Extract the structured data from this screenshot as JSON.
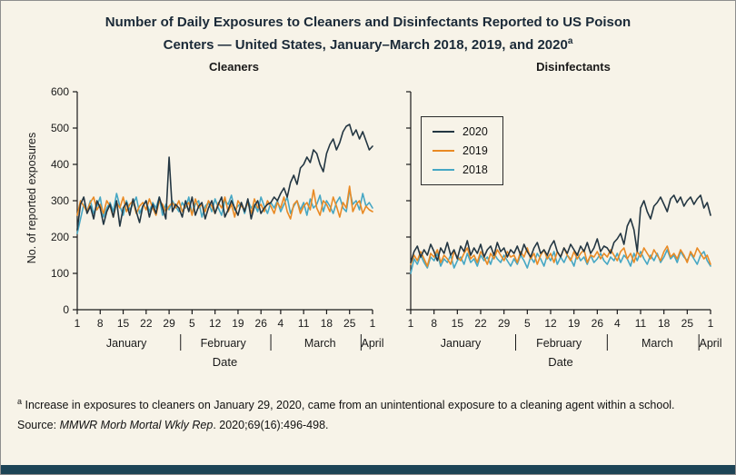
{
  "header": {
    "title_line1": "Number of Daily Exposures to Cleaners and Disinfectants Reported to US Poison",
    "title_line2": "Centers — United States, January–March 2018, 2019, and 2020",
    "title_sup": "a"
  },
  "legend": {
    "items": [
      {
        "label": "2020",
        "color": "#233642"
      },
      {
        "label": "2019",
        "color": "#e98a24"
      },
      {
        "label": "2018",
        "color": "#46a7c4"
      }
    ]
  },
  "footnote": {
    "marker": "a",
    "text": "Increase in exposures to cleaners on January 29, 2020, came from an unintentional exposure to a cleaning agent within a school."
  },
  "source": {
    "prefix": "Source: ",
    "journal": "MMWR Morb Mortal Wkly Rep",
    "rest": ". 2020;69(16):496-498."
  },
  "colors": {
    "background": "#f7f3e8",
    "accent_bar": "#1d4456",
    "axis": "#1a1a1a"
  },
  "chart_data": [
    {
      "type": "line",
      "title": "Cleaners",
      "xlabel": "Date",
      "ylabel": "No. of reported exposures",
      "x_unit": "day of year (Jan 1 = 1, Apr 1 = 91)",
      "xlim": [
        1,
        91
      ],
      "ylim": [
        0,
        600
      ],
      "y_ticks": [
        0,
        100,
        200,
        300,
        400,
        500,
        600
      ],
      "x_ticks": {
        "days": [
          1,
          8,
          15,
          22,
          29,
          36,
          43,
          50,
          57,
          63,
          70,
          77,
          84,
          91
        ],
        "labels": [
          "1",
          "8",
          "15",
          "22",
          "29",
          "5",
          "12",
          "19",
          "26",
          "4",
          "11",
          "18",
          "25",
          "1"
        ]
      },
      "months": [
        {
          "label": "January",
          "center_day": 16
        },
        {
          "label": "February",
          "center_day": 45.5
        },
        {
          "label": "March",
          "center_day": 75
        },
        {
          "label": "April",
          "center_day": 91
        }
      ],
      "month_separators": [
        32.5,
        60,
        87.5
      ],
      "series": [
        {
          "name": "2020",
          "color": "#233642",
          "values": [
            220,
            290,
            310,
            265,
            285,
            250,
            300,
            280,
            235,
            270,
            290,
            255,
            300,
            230,
            280,
            295,
            260,
            305,
            270,
            240,
            285,
            300,
            255,
            290,
            265,
            310,
            280,
            250,
            420,
            270,
            290,
            280,
            255,
            300,
            270,
            310,
            260,
            285,
            295,
            250,
            280,
            300,
            265,
            290,
            310,
            255,
            275,
            300,
            280,
            260,
            295,
            270,
            305,
            250,
            285,
            300,
            265,
            280,
            290,
            295,
            310,
            300,
            320,
            335,
            310,
            350,
            370,
            345,
            390,
            400,
            420,
            405,
            440,
            430,
            400,
            380,
            430,
            455,
            470,
            440,
            460,
            490,
            505,
            510,
            480,
            495,
            470,
            490,
            465,
            440,
            450
          ]
        },
        {
          "name": "2019",
          "color": "#e98a24",
          "values": [
            260,
            300,
            285,
            270,
            295,
            310,
            275,
            290,
            265,
            300,
            285,
            255,
            295,
            280,
            310,
            270,
            290,
            300,
            265,
            285,
            295,
            275,
            305,
            280,
            260,
            300,
            290,
            270,
            285,
            295,
            280,
            300,
            270,
            285,
            295,
            260,
            305,
            280,
            290,
            270,
            300,
            285,
            265,
            295,
            280,
            310,
            270,
            290,
            255,
            300,
            285,
            275,
            295,
            265,
            305,
            280,
            290,
            270,
            300,
            285,
            265,
            295,
            280,
            310,
            270,
            250,
            290,
            300,
            265,
            285,
            295,
            275,
            330,
            280,
            260,
            300,
            290,
            270,
            310,
            285,
            255,
            295,
            280,
            340,
            270,
            290,
            300,
            265,
            285,
            275,
            270
          ]
        },
        {
          "name": "2018",
          "color": "#46a7c4",
          "values": [
            210,
            250,
            290,
            270,
            300,
            265,
            285,
            310,
            255,
            280,
            295,
            270,
            320,
            285,
            260,
            300,
            275,
            290,
            310,
            265,
            285,
            300,
            270,
            295,
            280,
            310,
            260,
            290,
            275,
            300,
            285,
            270,
            295,
            280,
            310,
            265,
            290,
            300,
            255,
            285,
            295,
            270,
            305,
            280,
            260,
            300,
            290,
            315,
            275,
            285,
            295,
            265,
            300,
            280,
            290,
            270,
            310,
            285,
            265,
            295,
            280,
            300,
            270,
            290,
            310,
            265,
            285,
            300,
            275,
            295,
            260,
            305,
            280,
            290,
            315,
            270,
            300,
            285,
            265,
            295,
            310,
            280,
            270,
            330,
            290,
            300,
            275,
            320,
            285,
            295,
            280
          ]
        }
      ]
    },
    {
      "type": "line",
      "title": "Disinfectants",
      "xlabel": "Date",
      "ylabel": "",
      "x_unit": "day of year (Jan 1 = 1, Apr 1 = 91)",
      "xlim": [
        1,
        91
      ],
      "ylim": [
        0,
        600
      ],
      "y_ticks": [
        0,
        100,
        200,
        300,
        400,
        500,
        600
      ],
      "x_ticks": {
        "days": [
          1,
          8,
          15,
          22,
          29,
          36,
          43,
          50,
          57,
          63,
          70,
          77,
          84,
          91
        ],
        "labels": [
          "1",
          "8",
          "15",
          "22",
          "29",
          "5",
          "12",
          "19",
          "26",
          "4",
          "11",
          "18",
          "25",
          "1"
        ]
      },
      "months": [
        {
          "label": "January",
          "center_day": 16
        },
        {
          "label": "February",
          "center_day": 45.5
        },
        {
          "label": "March",
          "center_day": 75
        },
        {
          "label": "April",
          "center_day": 91
        }
      ],
      "month_separators": [
        32.5,
        60,
        87.5
      ],
      "series": [
        {
          "name": "2020",
          "color": "#233642",
          "values": [
            130,
            160,
            175,
            145,
            165,
            150,
            180,
            160,
            135,
            170,
            155,
            185,
            150,
            165,
            140,
            175,
            160,
            190,
            150,
            170,
            155,
            180,
            145,
            165,
            175,
            150,
            185,
            160,
            170,
            145,
            165,
            155,
            175,
            150,
            180,
            160,
            145,
            170,
            185,
            155,
            165,
            150,
            175,
            190,
            160,
            145,
            170,
            155,
            180,
            165,
            150,
            175,
            160,
            185,
            155,
            170,
            195,
            160,
            175,
            170,
            155,
            185,
            195,
            210,
            180,
            230,
            250,
            220,
            160,
            280,
            300,
            270,
            250,
            285,
            295,
            310,
            290,
            270,
            305,
            315,
            295,
            310,
            285,
            300,
            310,
            290,
            305,
            315,
            280,
            295,
            260
          ]
        },
        {
          "name": "2019",
          "color": "#e98a24",
          "values": [
            125,
            150,
            135,
            160,
            140,
            120,
            155,
            145,
            165,
            130,
            150,
            140,
            125,
            160,
            145,
            135,
            155,
            170,
            140,
            150,
            130,
            160,
            145,
            125,
            155,
            140,
            165,
            150,
            135,
            160,
            145,
            150,
            130,
            160,
            145,
            170,
            140,
            155,
            125,
            150,
            165,
            140,
            155,
            130,
            160,
            145,
            170,
            150,
            135,
            160,
            140,
            155,
            165,
            130,
            150,
            145,
            160,
            140,
            155,
            145,
            165,
            150,
            135,
            160,
            170,
            140,
            155,
            130,
            160,
            145,
            170,
            155,
            140,
            165,
            150,
            135,
            160,
            175,
            145,
            155,
            140,
            165,
            150,
            130,
            160,
            145,
            170,
            155,
            140,
            150,
            125
          ]
        },
        {
          "name": "2018",
          "color": "#46a7c4",
          "values": [
            100,
            140,
            125,
            150,
            130,
            115,
            145,
            135,
            155,
            120,
            140,
            130,
            150,
            115,
            135,
            145,
            125,
            155,
            130,
            140,
            120,
            150,
            135,
            145,
            125,
            155,
            140,
            130,
            150,
            135,
            120,
            140,
            125,
            150,
            135,
            115,
            145,
            130,
            155,
            140,
            120,
            150,
            135,
            160,
            125,
            145,
            130,
            150,
            140,
            120,
            155,
            135,
            145,
            125,
            150,
            130,
            140,
            155,
            135,
            125,
            145,
            135,
            155,
            130,
            150,
            140,
            120,
            155,
            135,
            160,
            140,
            125,
            150,
            135,
            155,
            130,
            145,
            165,
            140,
            150,
            130,
            160,
            145,
            135,
            155,
            140,
            125,
            150,
            160,
            135,
            120
          ]
        }
      ]
    }
  ]
}
